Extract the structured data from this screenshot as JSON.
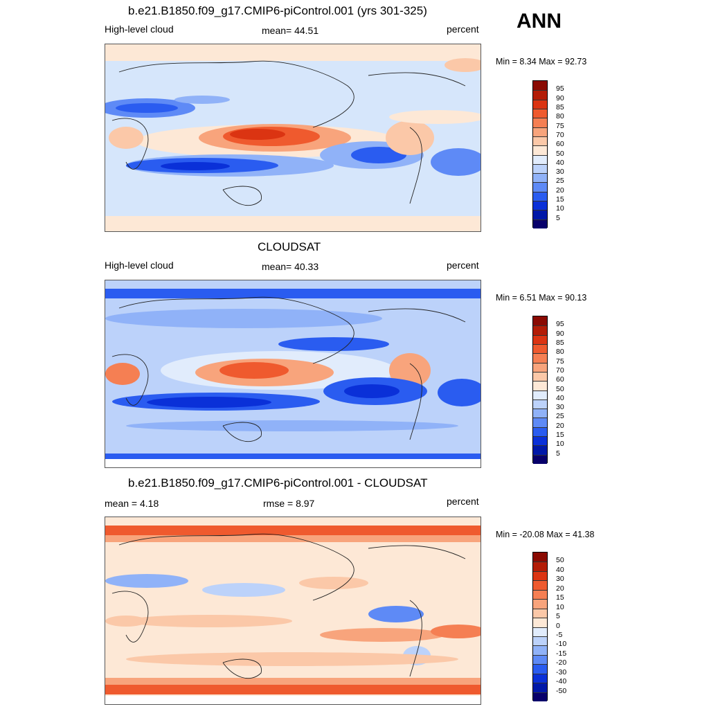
{
  "season": "ANN",
  "palettes": {
    "abs": [
      "#08006b",
      "#0018a8",
      "#0a30d8",
      "#2a5cf0",
      "#5e8af6",
      "#90b2f8",
      "#bcd2fa",
      "#e1ecfc",
      "#fde8d6",
      "#fbc8a8",
      "#f8a47c",
      "#f57f53",
      "#ef5a2e",
      "#db3412",
      "#b31c06",
      "#8a0a02"
    ],
    "diff": [
      "#08006b",
      "#0018a8",
      "#0a30d8",
      "#2a5cf0",
      "#5e8af6",
      "#90b2f8",
      "#bcd2fa",
      "#e1ecfc",
      "#fde8d6",
      "#fbc8a8",
      "#f8a47c",
      "#f57f53",
      "#ef5a2e",
      "#db3412",
      "#b31c06",
      "#8a0a02"
    ]
  },
  "panels": [
    {
      "id": "model",
      "title": "b.e21.B1850.f09_g17.CMIP6-piControl.001 (yrs 301-325)",
      "left_label": "High-level cloud",
      "center_label": "mean=  44.51",
      "right_label": "percent",
      "minmax": "Min =   8.34 Max =  92.73",
      "colorbar_ticks": [
        "95",
        "90",
        "85",
        "80",
        "75",
        "70",
        "60",
        "50",
        "40",
        "30",
        "25",
        "20",
        "15",
        "10",
        "5"
      ],
      "palette": "abs"
    },
    {
      "id": "obs",
      "title": "CLOUDSAT",
      "left_label": "High-level cloud",
      "center_label": "mean=  40.33",
      "right_label": "percent",
      "minmax": "Min =   6.51 Max =  90.13",
      "colorbar_ticks": [
        "95",
        "90",
        "85",
        "80",
        "75",
        "70",
        "60",
        "50",
        "40",
        "30",
        "25",
        "20",
        "15",
        "10",
        "5"
      ],
      "palette": "abs"
    },
    {
      "id": "diff",
      "title": "b.e21.B1850.f09_g17.CMIP6-piControl.001 - CLOUDSAT",
      "left_label": "mean =   4.18",
      "center_label": "rmse =   8.97",
      "right_label": "percent",
      "minmax": "Min = -20.08 Max =  41.38",
      "colorbar_ticks": [
        "50",
        "40",
        "30",
        "20",
        "15",
        "10",
        "5",
        "0",
        "-5",
        "-10",
        "-15",
        "-20",
        "-30",
        "-40",
        "-50"
      ],
      "palette": "diff"
    }
  ]
}
